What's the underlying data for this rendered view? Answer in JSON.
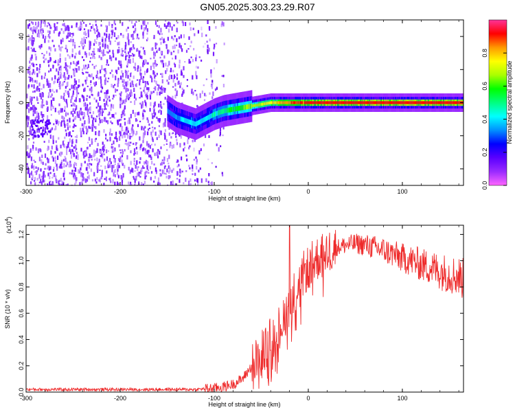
{
  "title": "GN05.2025.303.23.29.R07",
  "chart_data": [
    {
      "type": "heatmap",
      "title": "",
      "xlabel": "Height of straight line (km)",
      "ylabel": "Frequency (Hz)",
      "xlim": [
        -300,
        165
      ],
      "ylim": [
        -50,
        50
      ],
      "xticks": [
        -300,
        -200,
        -100,
        0,
        100
      ],
      "xtick_labels": [
        "-300",
        "-200",
        "-100",
        "0",
        "100"
      ],
      "yticks": [
        -40,
        -20,
        0,
        20,
        40
      ],
      "ytick_labels": [
        "-40",
        "-20",
        "0",
        "20",
        "40"
      ],
      "colorbar": {
        "label": "Normalized spectral amplitude",
        "range": [
          0,
          1
        ],
        "ticks": [
          0.0,
          0.2,
          0.4,
          0.6,
          0.8
        ],
        "tick_labels": [
          "0.0",
          "0.2",
          "0.4",
          "0.6",
          "0.8"
        ],
        "colors": [
          "#ff66ff",
          "#9a2bff",
          "#5a00ff",
          "#0000ff",
          "#0090ff",
          "#00ffff",
          "#00ff80",
          "#00ff00",
          "#aaff00",
          "#ffff00",
          "#ff9900",
          "#ff0000",
          "#ff3399"
        ]
      },
      "signal_track": {
        "x": [
          -150,
          -140,
          -130,
          -120,
          -110,
          -100,
          -90,
          -80,
          -70,
          -60,
          -50,
          -40,
          -30,
          -20,
          -10,
          0,
          50,
          100,
          165
        ],
        "frequency": [
          -5,
          -9,
          -11,
          -13,
          -10,
          -7,
          -5,
          -4,
          -3,
          -2,
          -1,
          0,
          0,
          0,
          0,
          0,
          0,
          0,
          0
        ],
        "amplitude": [
          0.35,
          0.4,
          0.45,
          0.45,
          0.45,
          0.5,
          0.55,
          0.6,
          0.65,
          0.7,
          0.75,
          0.8,
          0.85,
          0.9,
          0.92,
          0.95,
          0.97,
          0.97,
          0.97
        ]
      },
      "noise_region_x": [
        -300,
        -95
      ]
    },
    {
      "type": "line",
      "title": "",
      "xlabel": "Height of straight line (km)",
      "ylabel": "SNR (10 * v/v)",
      "y_multiplier": "(x10",
      "y_multiplier_exp": "4",
      "xlim": [
        -300,
        165
      ],
      "ylim": [
        0,
        1.27
      ],
      "xticks": [
        -300,
        -200,
        -100,
        0,
        100
      ],
      "xtick_labels": [
        "-300",
        "-200",
        "-100",
        "0",
        "100"
      ],
      "yticks": [
        0.0,
        0.2,
        0.4,
        0.6,
        0.8,
        1.0,
        1.2
      ],
      "ytick_labels": [
        "0.0",
        "0.2",
        "0.4",
        "0.6",
        "0.8",
        "1.0",
        "1.2"
      ],
      "color": "#ee2a2a",
      "series": [
        {
          "x": [
            -300,
            -250,
            -200,
            -150,
            -120,
            -100,
            -90,
            -80,
            -70,
            -60,
            -50,
            -40,
            -30,
            -25,
            -20,
            -15,
            -10,
            -5,
            0,
            10,
            20,
            30,
            40,
            50,
            60,
            70,
            80,
            90,
            100,
            110,
            120,
            130,
            140,
            150,
            160,
            165
          ],
          "y": [
            0.02,
            0.02,
            0.02,
            0.02,
            0.02,
            0.03,
            0.04,
            0.06,
            0.1,
            0.2,
            0.3,
            0.4,
            0.5,
            0.6,
            0.68,
            0.75,
            0.82,
            0.9,
            0.95,
            1.02,
            1.07,
            1.1,
            1.12,
            1.13,
            1.12,
            1.1,
            1.08,
            1.05,
            1.02,
            1.0,
            0.97,
            0.95,
            0.92,
            0.9,
            0.88,
            0.86
          ]
        }
      ]
    }
  ]
}
